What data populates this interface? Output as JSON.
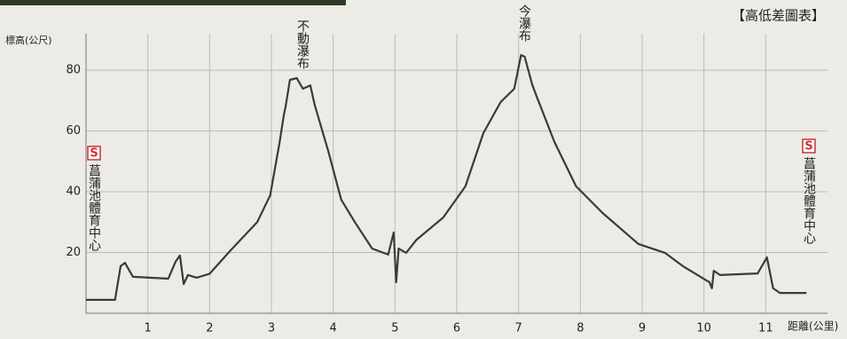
{
  "chart_data": {
    "type": "line",
    "title": "【高低差圖表】",
    "y_label": "標高(公尺)",
    "x_label": "距離(公里)",
    "annotations": [
      "不動瀑布",
      "今瀑布"
    ],
    "start_marker": "S",
    "start_label": "菖蒲池體育中心",
    "end_marker": "S",
    "end_label": "菖蒲池體育中心",
    "color": "#3a3a3a",
    "grid": true,
    "xlim": [
      0,
      12
    ],
    "ylim": [
      0,
      92
    ],
    "xticks": [
      1,
      2,
      3,
      4,
      5,
      6,
      7,
      8,
      9,
      10,
      11
    ],
    "yticks": [
      20,
      40,
      60,
      80
    ],
    "x": [
      0,
      0.47,
      0.56,
      0.63,
      0.76,
      1.33,
      1.45,
      1.52,
      1.58,
      1.65,
      1.79,
      2.0,
      2.34,
      2.77,
      2.98,
      3.13,
      3.2,
      3.23,
      3.3,
      3.41,
      3.51,
      3.63,
      3.7,
      3.92,
      4.13,
      4.35,
      4.63,
      4.89,
      4.98,
      5.02,
      5.06,
      5.18,
      5.35,
      5.78,
      6.14,
      6.43,
      6.71,
      6.93,
      7.04,
      7.1,
      7.22,
      7.29,
      7.58,
      7.93,
      8.36,
      8.94,
      9.37,
      9.66,
      10.09,
      10.13,
      10.16,
      10.26,
      10.87,
      11.02,
      11.12,
      11.23,
      11.66
    ],
    "values": [
      4.4,
      4.4,
      15.5,
      16.6,
      12,
      11.4,
      17,
      19,
      9.6,
      12.6,
      11.7,
      13,
      20.7,
      30,
      38.8,
      56,
      65,
      68,
      76.8,
      77.4,
      73.9,
      75,
      68.6,
      53.4,
      37.4,
      30,
      21.3,
      19.3,
      26.6,
      10.2,
      21.3,
      19.9,
      24.2,
      31.5,
      41.8,
      59.3,
      69.5,
      73.9,
      85,
      84.4,
      75.3,
      71.5,
      56.4,
      41.8,
      33,
      22.8,
      19.9,
      15.5,
      10.2,
      8.2,
      14,
      12.6,
      13.1,
      18.4,
      8.2,
      6.7,
      6.7
    ]
  }
}
